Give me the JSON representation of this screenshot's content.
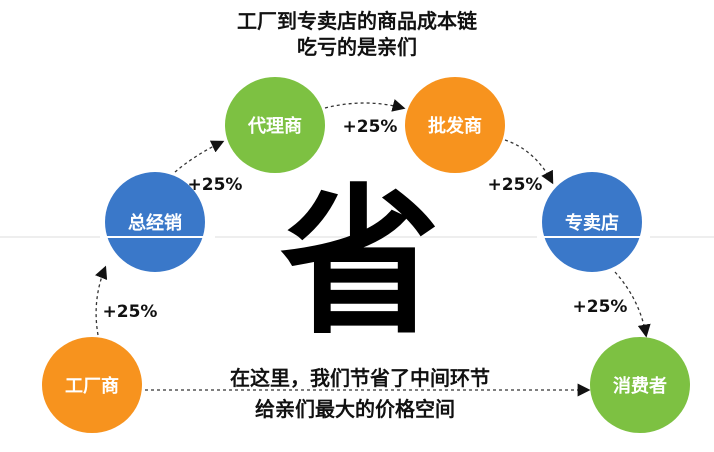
{
  "title": {
    "line1": "工厂到专卖店的商品成本链",
    "line2": "吃亏的是亲们"
  },
  "center_char": "省",
  "nodes": [
    {
      "label": "工厂商",
      "color": "#f7931e"
    },
    {
      "label": "总经销",
      "color": "#3a78c9"
    },
    {
      "label": "代理商",
      "color": "#7dc142"
    },
    {
      "label": "批发商",
      "color": "#f7931e"
    },
    {
      "label": "专卖店",
      "color": "#3a78c9"
    },
    {
      "label": "消费者",
      "color": "#7dc142"
    }
  ],
  "markups": [
    "+25%",
    "+25%",
    "+25%",
    "+25%",
    "+25%"
  ],
  "bottom_text": {
    "line1": "在这里，我们节省了中间环节",
    "line2": "给亲们最大的价格空间"
  }
}
